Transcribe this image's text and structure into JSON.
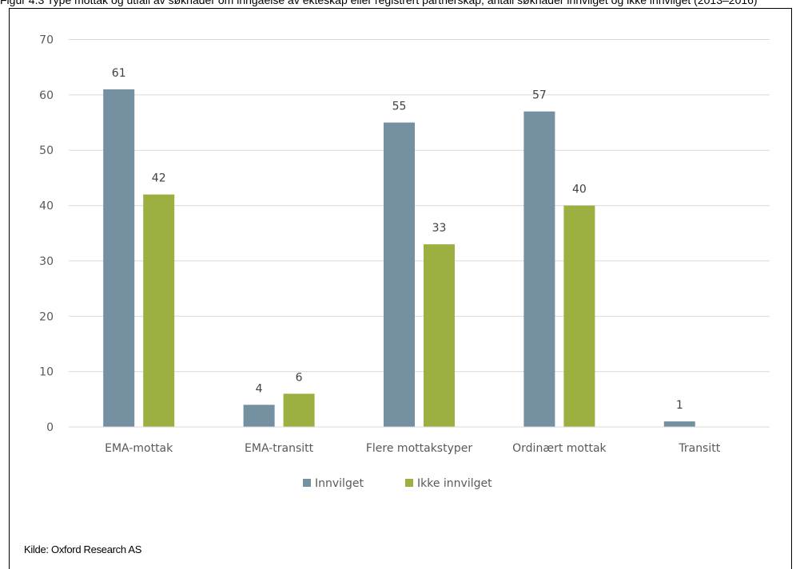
{
  "caption": "Figur 4.3 Type mottak og utfall av søknader om inngåelse av ekteskap eller registrert partnerskap, antall søknader innvilget og ikke innvilget (2013–2016)",
  "source": "Kilde: Oxford Research AS",
  "colors": {
    "innvilget": "#7590A1",
    "ikke_innvilget": "#9CB041",
    "grid": "#D9D9D9",
    "axis_text": "#595959"
  },
  "chart_data": {
    "type": "bar",
    "categories": [
      "EMA-mottak",
      "EMA-transitt",
      "Flere mottakstyper",
      "Ordinært mottak",
      "Transitt"
    ],
    "series": [
      {
        "name": "Innvilget",
        "values": [
          61,
          4,
          55,
          57,
          1
        ]
      },
      {
        "name": "Ikke innvilget",
        "values": [
          42,
          6,
          33,
          40,
          null
        ]
      }
    ],
    "yticks": [
      "0",
      "10",
      "20",
      "30",
      "40",
      "50",
      "60",
      "70"
    ],
    "ylim": [
      0,
      70
    ],
    "grid": true,
    "legend": "bottom-center"
  }
}
